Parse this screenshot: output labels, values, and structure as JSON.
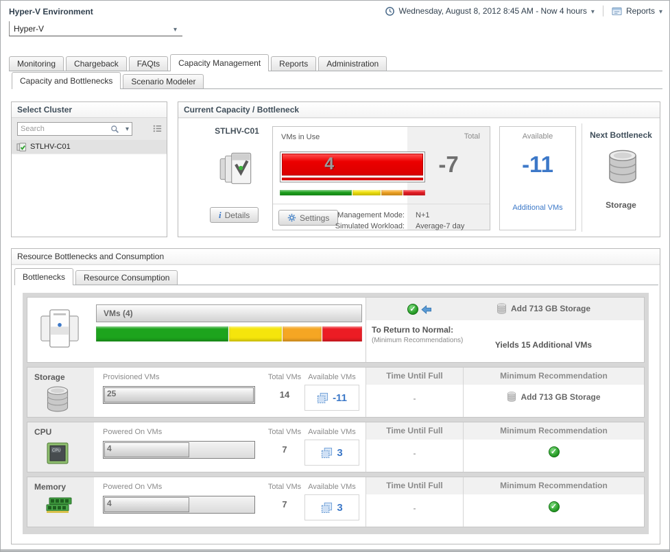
{
  "header": {
    "title": "Hyper-V Environment",
    "timerange": "Wednesday, August 8, 2012 8:45 AM - Now 4 hours",
    "reports": "Reports",
    "selector_value": "Hyper-V"
  },
  "tabs": {
    "main": [
      "Monitoring",
      "Chargeback",
      "FAQts",
      "Capacity Management",
      "Reports",
      "Administration"
    ],
    "sub": [
      "Capacity and Bottlenecks",
      "Scenario Modeler"
    ]
  },
  "select_cluster": {
    "title": "Select Cluster",
    "search_placeholder": "Search",
    "cluster": "STLHV-C01"
  },
  "capacity": {
    "title": "Current Capacity / Bottleneck",
    "cluster": "STLHV-C01",
    "details": "Details",
    "vms_in_use_label": "VMs in Use",
    "vms_in_use_value": "4",
    "total_label": "Total",
    "total_value": "-7",
    "available_label": "Available",
    "available_value": "-11",
    "available_link": "Additional VMs",
    "settings": "Settings",
    "management_mode_label": "Management Mode:",
    "management_mode_value": "N+1",
    "simulated_workload_label": "Simulated Workload:",
    "simulated_workload_value": "Average-7 day",
    "next_bottleneck_title": "Next Bottleneck",
    "next_bottleneck_resource": "Storage"
  },
  "bottlenecks": {
    "title": "Resource Bottlenecks and Consumption",
    "tabs": [
      "Bottlenecks",
      "Resource Consumption"
    ],
    "summary": {
      "vms_label": "VMs (4)",
      "return_label": "To Return to Normal:",
      "return_note": "(Minimum Recommendations)",
      "recommendation": "Add 713 GB Storage",
      "yields": "Yields 15 Additional VMs"
    },
    "headers": {
      "time": "Time Until Full",
      "rec": "Minimum Recommendation",
      "total": "Total VMs",
      "available": "Available VMs"
    },
    "rows": [
      {
        "name": "Storage",
        "metric_label": "Provisioned VMs",
        "metric_value": "25",
        "fill_pct": 100,
        "total": "14",
        "available": "-11",
        "time": "-",
        "recommendation": "Add 713 GB Storage"
      },
      {
        "name": "CPU",
        "metric_label": "Powered On VMs",
        "metric_value": "4",
        "fill_pct": 57,
        "total": "7",
        "available": "3",
        "time": "-",
        "recommendation": ""
      },
      {
        "name": "Memory",
        "metric_label": "Powered On VMs",
        "metric_value": "4",
        "fill_pct": 57,
        "total": "7",
        "available": "3",
        "time": "-",
        "recommendation": ""
      }
    ]
  },
  "zones": [
    {
      "color": "#1da41d",
      "pct": 50
    },
    {
      "color": "#f5e50c",
      "pct": 20
    },
    {
      "color": "#f5a623",
      "pct": 15
    },
    {
      "color": "#ec1c24",
      "pct": 15
    }
  ],
  "colors": {
    "accent_blue": "#3C78C8",
    "alarm_red": "#E90E0E",
    "ok_green": "#2DA12D",
    "title_slate": "#31404E"
  }
}
